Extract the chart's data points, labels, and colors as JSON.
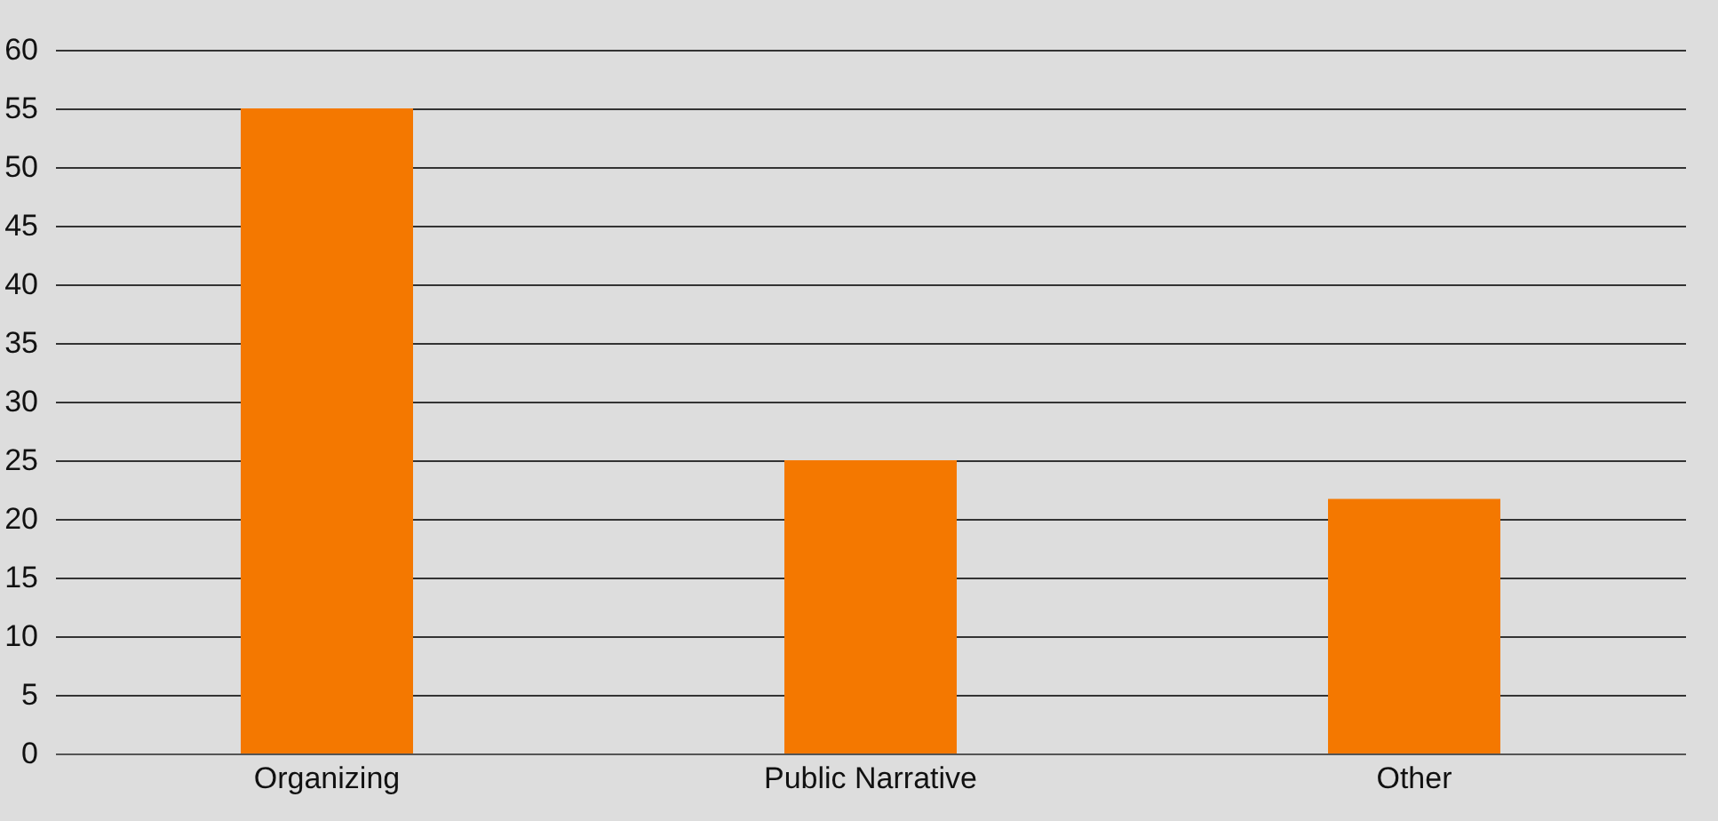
{
  "chart_data": {
    "type": "bar",
    "categories": [
      "Organizing",
      "Public Narrative",
      "Other"
    ],
    "values": [
      55,
      25,
      21.7
    ],
    "color": "#f47800",
    "ylim": [
      0,
      60
    ],
    "yticks": [
      0,
      5,
      10,
      15,
      20,
      25,
      30,
      35,
      40,
      45,
      50,
      55,
      60
    ],
    "grid": "y"
  }
}
